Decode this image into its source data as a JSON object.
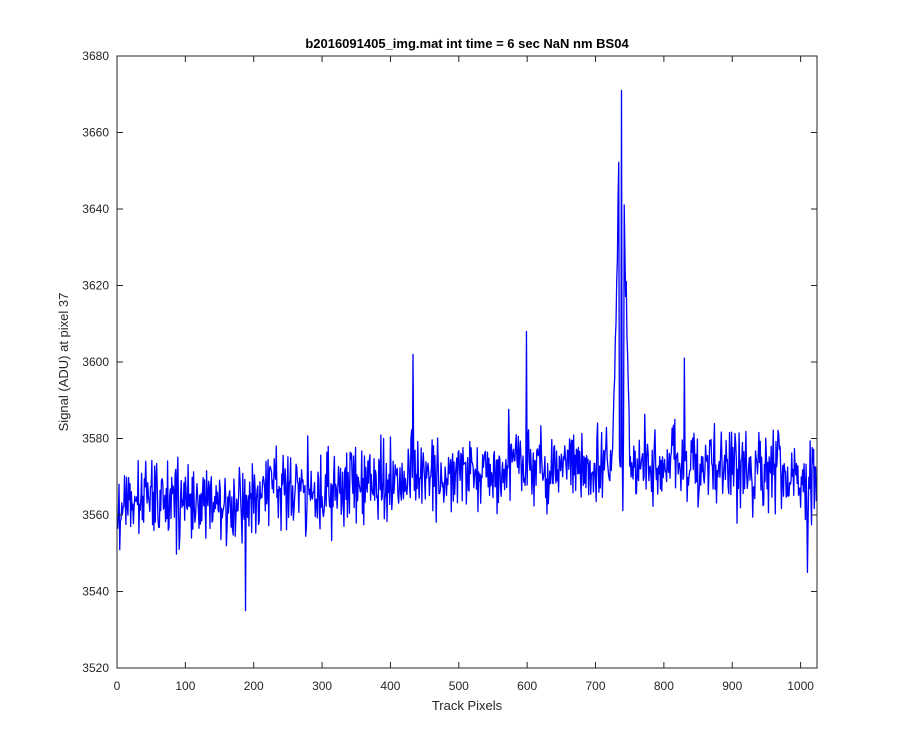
{
  "chart_data": {
    "type": "line",
    "title": "b2016091405_img.mat int time = 6 sec  NaN nm BS04",
    "xlabel": "Track Pixels",
    "ylabel": "Signal (ADU) at pixel 37",
    "xlim": [
      0,
      1024
    ],
    "ylim": [
      3520,
      3680
    ],
    "xticks": [
      0,
      100,
      200,
      300,
      400,
      500,
      600,
      700,
      800,
      900,
      1000
    ],
    "yticks": [
      3520,
      3540,
      3560,
      3580,
      3600,
      3620,
      3640,
      3660,
      3680
    ],
    "grid": false,
    "line_color": "#0000ff",
    "series": [
      {
        "x": [
          0,
          25,
          50,
          75,
          100,
          125,
          150,
          175,
          200,
          225,
          250,
          275,
          300,
          325,
          350,
          375,
          400,
          425,
          450,
          475,
          500,
          525,
          550,
          575,
          600,
          625,
          650,
          675,
          700,
          725,
          738,
          750,
          775,
          800,
          825,
          850,
          875,
          900,
          925,
          950,
          975,
          1000,
          1024
        ],
        "y": [
          3560,
          3563,
          3565,
          3564,
          3565,
          3563,
          3562,
          3562,
          3564,
          3565,
          3566,
          3566,
          3565,
          3566,
          3567,
          3568,
          3569,
          3570,
          3569,
          3570,
          3570,
          3571,
          3572,
          3573,
          3572,
          3572,
          3573,
          3573,
          3573,
          3574,
          3671,
          3574,
          3573,
          3573,
          3574,
          3573,
          3573,
          3572,
          3572,
          3572,
          3571,
          3570,
          3567
        ],
        "noise_amplitude": 9,
        "points": 1024,
        "extremes": [
          {
            "x": 188,
            "y": 3535
          },
          {
            "x": 433,
            "y": 3602
          },
          {
            "x": 599,
            "y": 3608
          },
          {
            "x": 738,
            "y": 3671
          },
          {
            "x": 830,
            "y": 3601
          },
          {
            "x": 1010,
            "y": 3545
          }
        ]
      }
    ]
  }
}
